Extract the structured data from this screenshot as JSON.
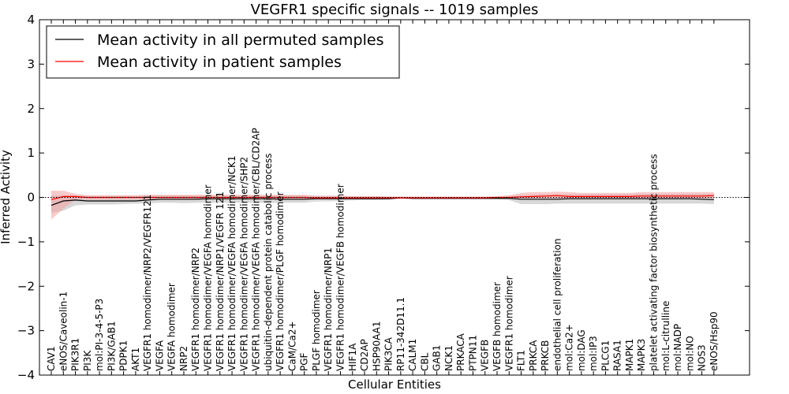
{
  "chart_data": {
    "type": "line",
    "title": "VEGFR1 specific signals -- 1019 samples",
    "xlabel": "Cellular Entities",
    "ylabel": "Inferred Activity",
    "ylim": [
      -4,
      4
    ],
    "yticks": [
      -4,
      -3,
      -2,
      -1,
      0,
      1,
      2,
      3,
      4
    ],
    "ytick_labels": [
      "−4",
      "−3",
      "−2",
      "−1",
      "0",
      "1",
      "2",
      "3",
      "4"
    ],
    "grid": false,
    "legend_position": "top-left",
    "categories": [
      "CAV1",
      "eNOS/Caveolin-1",
      "PIK3R1",
      "PI3K",
      "mol:PI-3-4-5-P3",
      "PI3K/GAB1",
      "PDPK1",
      "AKT1",
      "VEGFR1 homodimer/NRP2/VEGFR121",
      "VEGFA",
      "VEGFA homodimer",
      "NRP2",
      "VEGFR1 homodimer/NRP2",
      "VEGFR1 homodimer/VEGFA homodimer",
      "VEGFR1 homodimer/NRP1/VEGFR 121",
      "VEGFR1 homodimer/VEGFA homodimer/NCK1",
      "VEGFR1 homodimer/VEGFA homodimer/SHP2",
      "VEGFR1 homodimer/VEGFA homodimer/CBL/CD2AP",
      "ubiquitin-dependent protein catabolic process",
      "VEGFR1 homodimer/PLGF homodimer",
      "CaM/Ca2+",
      "PGF",
      "PLGF homodimer",
      "VEGFR1 homodimer/NRP1",
      "VEGFR1 homodimer/VEGFB homodimer",
      "HIF1A",
      "CD2AP",
      "HSP90AA1",
      "PIK3CA",
      "RP11-342D11.1",
      "CALM1",
      "CBL",
      "GAB1",
      "NCK1",
      "PRKACA",
      "PTPN11",
      "VEGFB",
      "VEGFB homodimer",
      "VEGFR1 homodimer",
      "FLT1",
      "PRKCA",
      "PRKCB",
      "endothelial cell proliferation",
      "mol:Ca2+",
      "mol:DAG",
      "mol:IP3",
      "PLCG1",
      "RASA1",
      "MAPK1",
      "MAPK3",
      "platelet activating factor biosynthetic process",
      "mol:L-citrulline",
      "mol:NADP",
      "mol:NO",
      "NOS3",
      "eNOS/Hsp90"
    ],
    "series": [
      {
        "name": "Mean activity in all permuted samples",
        "color": "#000000",
        "band_color": "#bdbdbd",
        "values": [
          -0.18,
          -0.08,
          -0.06,
          -0.08,
          -0.08,
          -0.08,
          -0.08,
          -0.08,
          -0.06,
          -0.04,
          -0.04,
          -0.04,
          -0.04,
          -0.03,
          -0.03,
          -0.03,
          -0.03,
          -0.03,
          -0.03,
          -0.04,
          -0.04,
          -0.04,
          -0.03,
          -0.03,
          -0.03,
          -0.03,
          -0.03,
          -0.03,
          -0.03,
          -0.01,
          -0.02,
          -0.02,
          -0.02,
          -0.02,
          -0.02,
          -0.02,
          -0.02,
          -0.02,
          -0.02,
          -0.04,
          -0.04,
          -0.04,
          -0.04,
          -0.03,
          -0.03,
          -0.03,
          -0.03,
          -0.03,
          -0.03,
          -0.03,
          -0.03,
          -0.03,
          -0.03,
          -0.03,
          -0.04,
          -0.05
        ],
        "lower": [
          -0.35,
          -0.3,
          -0.18,
          -0.16,
          -0.16,
          -0.16,
          -0.15,
          -0.14,
          -0.14,
          -0.12,
          -0.12,
          -0.13,
          -0.12,
          -0.12,
          -0.12,
          -0.12,
          -0.12,
          -0.12,
          -0.12,
          -0.12,
          -0.12,
          -0.12,
          -0.09,
          -0.09,
          -0.08,
          -0.07,
          -0.06,
          -0.06,
          -0.05,
          -0.03,
          -0.05,
          -0.05,
          -0.05,
          -0.05,
          -0.05,
          -0.05,
          -0.05,
          -0.05,
          -0.06,
          -0.15,
          -0.15,
          -0.15,
          -0.14,
          -0.14,
          -0.14,
          -0.14,
          -0.14,
          -0.14,
          -0.14,
          -0.14,
          -0.14,
          -0.14,
          -0.14,
          -0.14,
          -0.14,
          -0.15
        ],
        "upper": [
          0.05,
          0.05,
          0.04,
          0.03,
          0.03,
          0.03,
          0.03,
          0.03,
          0.04,
          0.04,
          0.04,
          0.04,
          0.04,
          0.04,
          0.04,
          0.04,
          0.04,
          0.04,
          0.04,
          0.04,
          0.04,
          0.04,
          0.03,
          0.03,
          0.03,
          0.02,
          0.02,
          0.02,
          0.02,
          0.01,
          0.01,
          0.01,
          0.01,
          0.01,
          0.01,
          0.01,
          0.01,
          0.01,
          0.02,
          0.05,
          0.06,
          0.07,
          0.07,
          0.07,
          0.07,
          0.07,
          0.07,
          0.07,
          0.07,
          0.08,
          0.08,
          0.08,
          0.08,
          0.08,
          0.08,
          0.08
        ]
      },
      {
        "name": "Mean activity in patient samples",
        "color": "#ff0000",
        "band_color": "#f4a0a0",
        "values": [
          -0.05,
          0.02,
          0.02,
          0.0,
          0.0,
          0.0,
          0.0,
          0.0,
          0.0,
          0.0,
          0.0,
          0.0,
          0.0,
          0.0,
          0.0,
          0.0,
          0.0,
          0.0,
          0.0,
          0.0,
          0.0,
          0.0,
          -0.01,
          -0.01,
          -0.01,
          -0.01,
          -0.01,
          -0.01,
          -0.01,
          -0.01,
          -0.01,
          -0.01,
          -0.01,
          -0.01,
          -0.01,
          -0.01,
          -0.01,
          0.0,
          0.0,
          0.01,
          0.02,
          0.03,
          0.04,
          0.02,
          0.02,
          0.02,
          0.02,
          0.02,
          0.02,
          0.03,
          0.03,
          0.03,
          0.03,
          0.03,
          0.03,
          0.04
        ],
        "lower": [
          -0.5,
          -0.25,
          -0.05,
          -0.05,
          -0.05,
          -0.05,
          -0.05,
          -0.05,
          -0.05,
          -0.05,
          -0.05,
          -0.05,
          -0.05,
          -0.05,
          -0.05,
          -0.05,
          -0.05,
          -0.05,
          -0.05,
          -0.05,
          -0.05,
          -0.05,
          -0.04,
          -0.04,
          -0.04,
          -0.03,
          -0.03,
          -0.03,
          -0.03,
          -0.02,
          -0.03,
          -0.03,
          -0.03,
          -0.03,
          -0.03,
          -0.03,
          -0.03,
          -0.03,
          -0.03,
          -0.02,
          -0.02,
          -0.02,
          -0.02,
          -0.02,
          -0.02,
          -0.02,
          -0.02,
          -0.02,
          -0.02,
          -0.02,
          -0.02,
          -0.02,
          -0.02,
          -0.02,
          -0.02,
          -0.02
        ],
        "upper": [
          0.15,
          0.15,
          0.08,
          0.05,
          0.05,
          0.05,
          0.05,
          0.05,
          0.06,
          0.06,
          0.06,
          0.06,
          0.06,
          0.06,
          0.06,
          0.06,
          0.06,
          0.06,
          0.06,
          0.06,
          0.06,
          0.06,
          0.04,
          0.04,
          0.04,
          0.03,
          0.03,
          0.03,
          0.02,
          0.02,
          0.02,
          0.02,
          0.02,
          0.02,
          0.02,
          0.02,
          0.02,
          0.03,
          0.05,
          0.1,
          0.12,
          0.12,
          0.13,
          0.12,
          0.1,
          0.1,
          0.1,
          0.1,
          0.1,
          0.12,
          0.12,
          0.12,
          0.12,
          0.12,
          0.12,
          0.12
        ]
      }
    ],
    "baseline": {
      "value": 0,
      "style": "dotted"
    }
  }
}
